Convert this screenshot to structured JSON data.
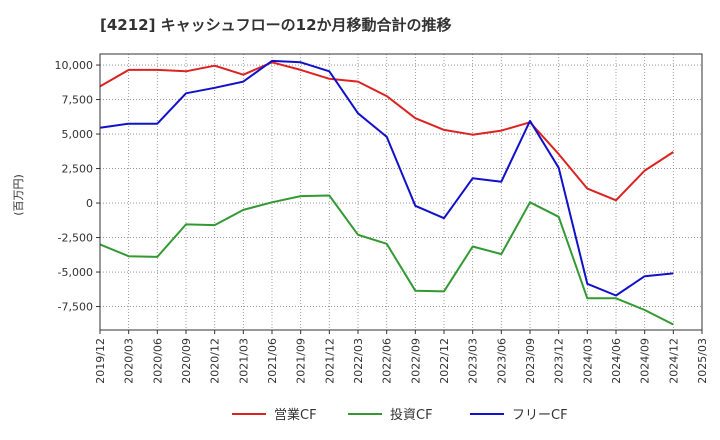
{
  "chart_data": {
    "type": "line",
    "title": "[4212]  キャッシュフローの12か月移動合計の推移",
    "ylabel": "(百万円)",
    "xlabel": "",
    "ylim": [
      -9200,
      10800
    ],
    "y_ticks": [
      10000,
      7500,
      5000,
      2500,
      0,
      -2500,
      -5000,
      -7500
    ],
    "y_tick_labels": [
      "10,000",
      "7,500",
      "5,000",
      "2,500",
      "0",
      "-2,500",
      "-5,000",
      "-7,500"
    ],
    "categories": [
      "2019/12",
      "2020/03",
      "2020/06",
      "2020/09",
      "2020/12",
      "2021/03",
      "2021/06",
      "2021/09",
      "2021/12",
      "2022/03",
      "2022/06",
      "2022/09",
      "2022/12",
      "2023/03",
      "2023/06",
      "2023/09",
      "2023/12",
      "2024/03",
      "2024/06",
      "2024/09",
      "2024/12",
      "2025/03"
    ],
    "grid": true,
    "legend_position": "bottom",
    "series": [
      {
        "name": "営業CF",
        "color": "#dd2222",
        "values": [
          8450,
          9650,
          9650,
          9550,
          9950,
          9300,
          10200,
          9650,
          9000,
          8800,
          7750,
          6150,
          5300,
          4950,
          5250,
          5850,
          3550,
          1050,
          200,
          2350,
          3700,
          null
        ]
      },
      {
        "name": "投資CF",
        "color": "#339933",
        "values": [
          -3000,
          -3850,
          -3900,
          -1550,
          -1600,
          -500,
          50,
          500,
          550,
          -2300,
          -2950,
          -6350,
          -6400,
          -3150,
          -3700,
          50,
          -1000,
          -6900,
          -6900,
          -7750,
          -8800,
          null
        ]
      },
      {
        "name": "フリーCF",
        "color": "#1111cc",
        "values": [
          5450,
          5750,
          5750,
          7950,
          8350,
          8800,
          10300,
          10200,
          9550,
          6500,
          4800,
          -200,
          -1100,
          1800,
          1550,
          5950,
          2550,
          -5850,
          -6700,
          -5300,
          -5100,
          null
        ]
      }
    ]
  }
}
